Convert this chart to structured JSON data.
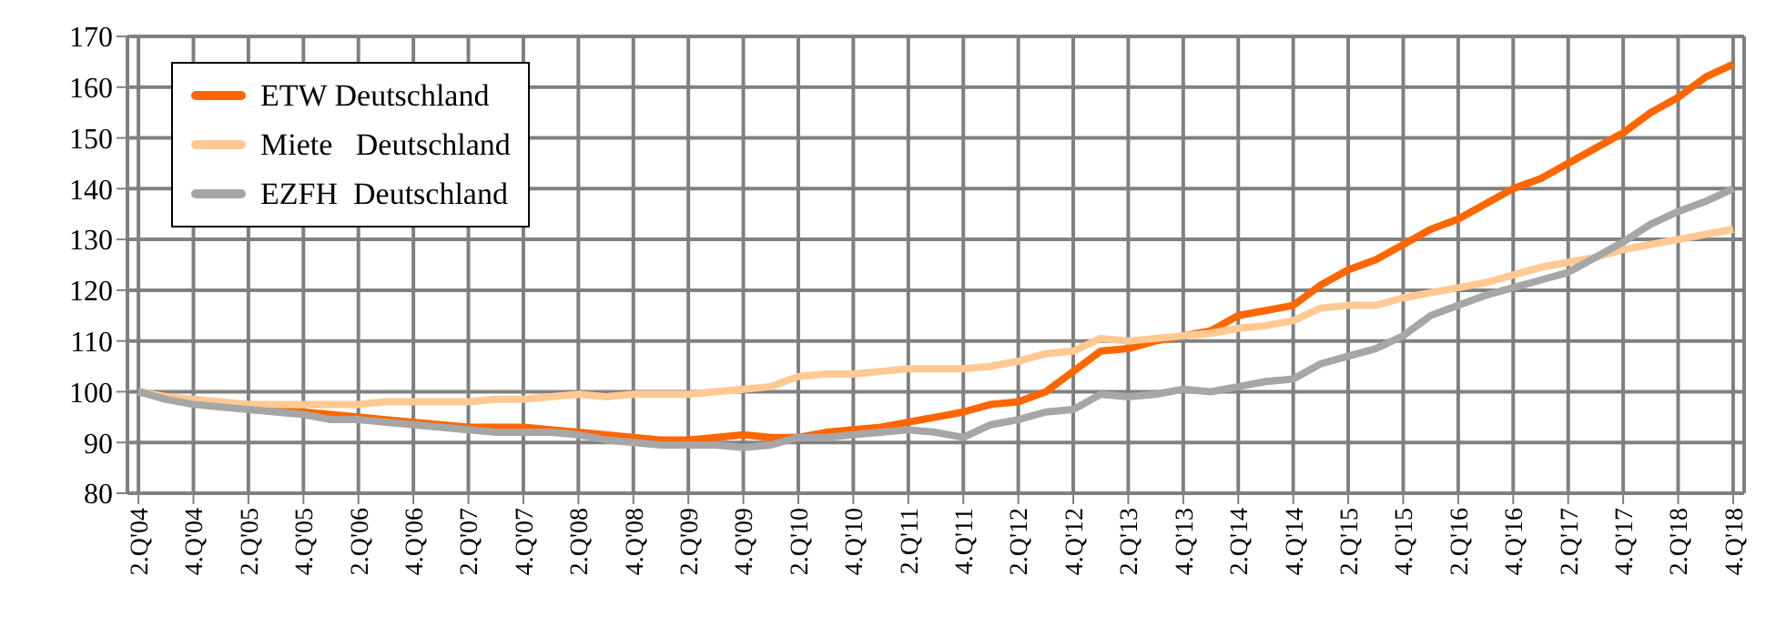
{
  "chart_data": {
    "type": "line",
    "categories": [
      "2.Q'04",
      null,
      "4.Q'04",
      null,
      "2.Q'05",
      null,
      "4.Q'05",
      null,
      "2.Q'06",
      null,
      "4.Q'06",
      null,
      "2.Q'07",
      null,
      "4.Q'07",
      null,
      "2.Q'08",
      null,
      "4.Q'08",
      null,
      "2.Q'09",
      null,
      "4.Q'09",
      null,
      "2.Q'10",
      null,
      "4.Q'10",
      null,
      "2.Q'11",
      null,
      "4.Q'11",
      null,
      "2.Q'12",
      null,
      "4.Q'12",
      null,
      "2.Q'13",
      null,
      "4.Q'13",
      null,
      "2.Q'14",
      null,
      "4.Q'14",
      null,
      "2.Q'15",
      null,
      "4.Q'15",
      null,
      "2.Q'16",
      null,
      "4.Q'16",
      null,
      "2.Q'17",
      null,
      "4.Q'17",
      null,
      "2.Q'18",
      null,
      "4.Q'18"
    ],
    "series": [
      {
        "name": "ETW Deutschland",
        "color": "#ff6600",
        "values": [
          100,
          99,
          98,
          97.5,
          97,
          96.5,
          96,
          95.5,
          95,
          94.5,
          94,
          93.5,
          93,
          93,
          93,
          92.5,
          92,
          91.5,
          91,
          90.5,
          90.5,
          91,
          91.5,
          91,
          91,
          92,
          92.5,
          93,
          94,
          95,
          96,
          97.5,
          98,
          100,
          104,
          108,
          108.5,
          110,
          111,
          112,
          115,
          116,
          117,
          121,
          124,
          126,
          129,
          132,
          134,
          137,
          140,
          142,
          145,
          148,
          151,
          155,
          158,
          162,
          164.5
        ]
      },
      {
        "name": "Miete   Deutschland",
        "color": "#ffc993",
        "values": [
          100,
          99,
          98.5,
          98,
          97.5,
          97.5,
          97.5,
          97.5,
          97.5,
          98,
          98,
          98,
          98,
          98.5,
          98.5,
          99,
          99.5,
          99,
          99.5,
          99.5,
          99.5,
          100,
          100.5,
          101,
          103,
          103.5,
          103.5,
          104,
          104.5,
          104.5,
          104.5,
          105,
          106,
          107.5,
          108,
          110.5,
          110,
          110.5,
          111,
          111.5,
          112.5,
          113,
          114,
          116.5,
          117,
          117,
          118.5,
          119.5,
          120.5,
          121.5,
          123,
          124.5,
          125.5,
          126.5,
          128,
          129,
          130,
          131,
          132
        ]
      },
      {
        "name": "EZFH  Deutschland",
        "color": "#a6a6a6",
        "values": [
          100,
          98.5,
          97.5,
          97,
          96.5,
          96,
          95.5,
          94.5,
          94.5,
          94,
          93.5,
          93,
          92.5,
          92,
          92,
          92,
          91.5,
          90.5,
          90,
          89.5,
          89.5,
          89.5,
          89,
          89.5,
          91,
          91,
          91.5,
          92,
          92.5,
          92,
          91,
          93.5,
          94.5,
          96,
          96.5,
          99.5,
          99,
          99.5,
          100.5,
          100,
          101,
          102,
          102.5,
          105.5,
          107,
          108.5,
          111,
          115,
          117,
          119,
          120.5,
          122,
          123.5,
          126.5,
          129.5,
          133,
          135.5,
          137.5,
          140
        ]
      }
    ],
    "ylim": [
      80,
      170
    ],
    "yticks": [
      80,
      90,
      100,
      110,
      120,
      130,
      140,
      150,
      160,
      170
    ],
    "grid": true,
    "legend": "top left",
    "marker": "none",
    "line_style": "solid"
  }
}
